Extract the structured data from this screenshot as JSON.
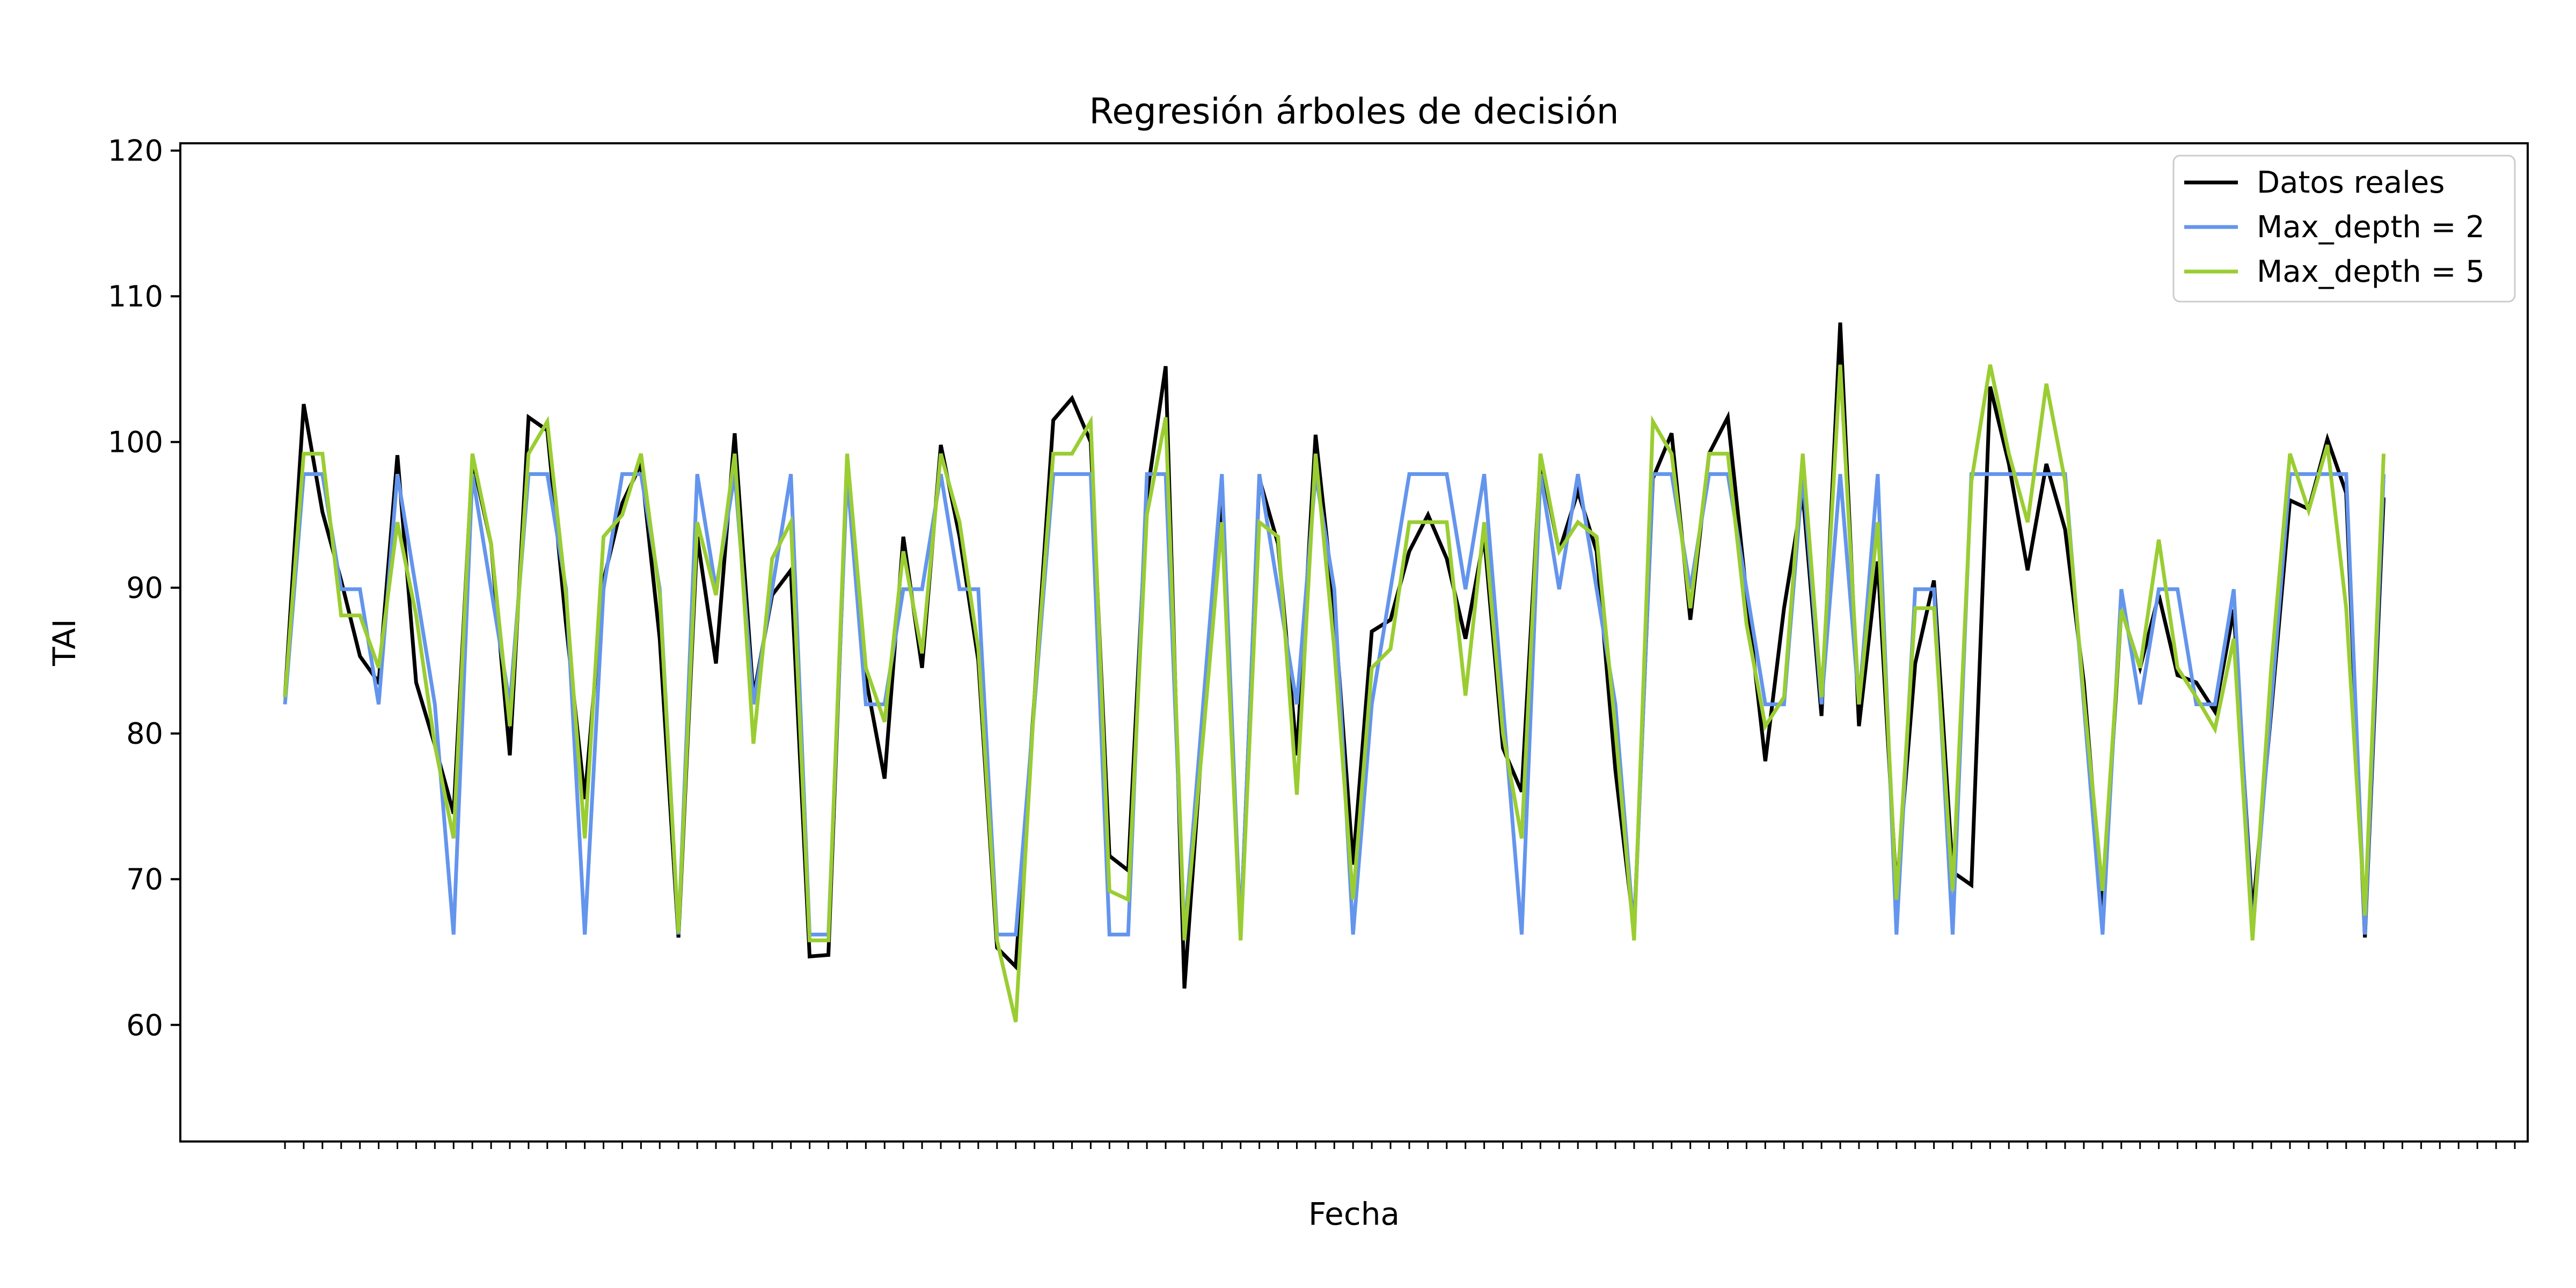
{
  "chart_data": {
    "type": "line",
    "title": "Regresión árboles de decisión",
    "xlabel": "Fecha",
    "ylabel": "TAI",
    "ylim": [
      52,
      120.5
    ],
    "yticks": [
      60,
      70,
      80,
      90,
      100,
      110,
      120
    ],
    "x_tick_count": 120,
    "legend_position": "top-right",
    "grid": false,
    "series": [
      {
        "name": "Datos reales",
        "color": "#000000",
        "values": [
          82.5,
          102.6,
          95.2,
          90.5,
          85.3,
          83.5,
          99.1,
          83.5,
          79.2,
          74.5,
          98.8,
          93.0,
          78.5,
          101.7,
          100.8,
          87.5,
          75.5,
          90.5,
          95.8,
          98.5,
          86.5,
          66.0,
          93.5,
          84.8,
          100.6,
          82.5,
          89.5,
          91.2,
          64.7,
          64.8,
          98.5,
          83.8,
          76.9,
          93.5,
          84.5,
          99.8,
          93.5,
          85.0,
          65.3,
          64.0,
          82.5,
          101.5,
          103.0,
          100.0,
          71.6,
          70.6,
          96.3,
          105.2,
          62.5,
          80.5,
          95.8,
          66.3,
          97.5,
          93.0,
          78.5,
          100.5,
          88.6,
          71.0,
          87.0,
          87.8,
          92.5,
          95.0,
          92.0,
          86.5,
          93.5,
          79.0,
          76.0,
          98.8,
          92.5,
          96.6,
          92.5,
          77.5,
          66.5,
          97.5,
          100.6,
          87.8,
          99.2,
          101.7,
          89.5,
          78.1,
          88.6,
          96.5,
          81.2,
          108.2,
          80.5,
          91.8,
          69.2,
          84.8,
          90.5,
          70.5,
          69.6,
          103.8,
          98.5,
          91.2,
          98.5,
          94.0,
          83.5,
          68.0,
          88.5,
          84.5,
          89.5,
          84.0,
          83.5,
          81.5,
          88.5,
          67.5,
          81.5,
          96.0,
          95.4,
          100.2,
          96.5,
          66.0,
          96.2
        ]
      },
      {
        "name": "Max_depth = 2",
        "color": "#6495ED",
        "values": [
          82.0,
          97.8,
          97.8,
          89.9,
          89.9,
          82.0,
          97.8,
          89.9,
          82.0,
          66.2,
          97.8,
          89.9,
          82.0,
          97.8,
          97.8,
          89.9,
          66.2,
          89.9,
          97.8,
          97.8,
          89.9,
          66.2,
          97.8,
          89.9,
          97.8,
          82.0,
          89.9,
          97.8,
          66.2,
          66.2,
          97.8,
          82.0,
          82.0,
          89.9,
          89.9,
          97.8,
          89.9,
          89.9,
          66.2,
          66.2,
          82.0,
          97.8,
          97.8,
          97.8,
          66.2,
          66.2,
          97.8,
          97.8,
          66.2,
          82.0,
          97.8,
          66.2,
          97.8,
          89.9,
          82.0,
          97.8,
          89.9,
          66.2,
          82.0,
          89.9,
          97.8,
          97.8,
          97.8,
          89.9,
          97.8,
          82.0,
          66.2,
          97.8,
          89.9,
          97.8,
          89.9,
          82.0,
          66.2,
          97.8,
          97.8,
          89.9,
          97.8,
          97.8,
          89.9,
          82.0,
          82.0,
          97.8,
          82.0,
          97.8,
          82.0,
          97.8,
          66.2,
          89.9,
          89.9,
          66.2,
          97.8,
          97.8,
          97.8,
          97.8,
          97.8,
          97.8,
          82.0,
          66.2,
          89.9,
          82.0,
          89.9,
          89.9,
          82.0,
          82.0,
          89.9,
          66.2,
          82.0,
          97.8,
          97.8,
          97.8,
          97.8,
          66.2,
          97.8
        ]
      },
      {
        "name": "Max_depth = 5",
        "color": "#9ACD32",
        "values": [
          82.5,
          99.2,
          99.2,
          88.1,
          88.1,
          84.5,
          94.5,
          88.1,
          79.2,
          72.8,
          99.2,
          93.0,
          80.5,
          99.2,
          101.4,
          89.5,
          72.8,
          93.5,
          95.0,
          99.2,
          89.5,
          66.3,
          94.5,
          89.5,
          99.2,
          79.3,
          92.0,
          94.5,
          65.8,
          65.8,
          99.2,
          84.5,
          80.8,
          92.5,
          85.5,
          99.2,
          94.5,
          85.8,
          65.8,
          60.2,
          82.5,
          99.2,
          99.2,
          101.4,
          69.2,
          68.6,
          95.0,
          101.7,
          65.8,
          79.8,
          94.5,
          65.8,
          94.5,
          93.5,
          75.8,
          99.2,
          85.8,
          68.6,
          84.5,
          85.8,
          94.5,
          94.5,
          94.5,
          82.6,
          94.5,
          80.0,
          72.8,
          99.2,
          92.5,
          94.5,
          93.5,
          80.3,
          65.8,
          101.4,
          99.2,
          88.6,
          99.2,
          99.2,
          87.5,
          80.5,
          82.5,
          99.2,
          82.5,
          105.3,
          82.0,
          94.5,
          68.6,
          88.6,
          88.6,
          69.2,
          97.3,
          105.3,
          99.2,
          94.5,
          104.0,
          97.3,
          82.5,
          69.2,
          88.5,
          84.5,
          93.3,
          84.5,
          82.5,
          80.3,
          86.5,
          65.8,
          84.5,
          99.2,
          95.3,
          99.8,
          88.6,
          67.5,
          99.2
        ]
      }
    ]
  }
}
